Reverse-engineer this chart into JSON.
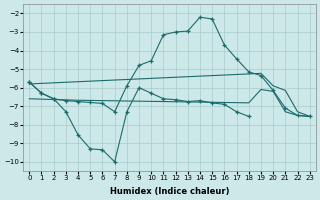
{
  "xlabel": "Humidex (Indice chaleur)",
  "bg_color": "#cde8e8",
  "grid_color": "#aacccc",
  "line_color": "#1a6b6b",
  "x_values": [
    0,
    1,
    2,
    3,
    4,
    5,
    6,
    7,
    8,
    9,
    10,
    11,
    12,
    13,
    14,
    15,
    16,
    17,
    18,
    19,
    20,
    21,
    22,
    23
  ],
  "y_curve": [
    -5.7,
    -6.3,
    -6.6,
    -6.7,
    -6.75,
    -6.8,
    -6.85,
    -7.3,
    -5.9,
    -4.8,
    -4.55,
    -3.15,
    -3.0,
    -2.95,
    -2.2,
    -2.3,
    -3.7,
    -4.45,
    -5.15,
    -5.35,
    -6.15,
    -7.1,
    -7.5,
    -7.55
  ],
  "y_upper": [
    -5.8,
    -5.77,
    -5.74,
    -5.71,
    -5.68,
    -5.65,
    -5.62,
    -5.59,
    -5.56,
    -5.53,
    -5.5,
    -5.47,
    -5.44,
    -5.41,
    -5.38,
    -5.35,
    -5.32,
    -5.29,
    -5.26,
    -5.23,
    -5.9,
    -6.15,
    -7.3,
    -7.55
  ],
  "y_lower": [
    -6.6,
    -6.62,
    -6.64,
    -6.66,
    -6.68,
    -6.69,
    -6.7,
    -6.71,
    -6.72,
    -6.73,
    -6.74,
    -6.75,
    -6.76,
    -6.77,
    -6.78,
    -6.79,
    -6.8,
    -6.81,
    -6.82,
    -6.1,
    -6.2,
    -7.3,
    -7.5,
    -7.55
  ],
  "x_zz": [
    0,
    1,
    2,
    3,
    4,
    5,
    6,
    7,
    8,
    9,
    10,
    11,
    12,
    13,
    14,
    15,
    16,
    17,
    18
  ],
  "y_zz": [
    -5.7,
    -6.3,
    -6.6,
    -7.3,
    -8.55,
    -9.3,
    -9.35,
    -10.0,
    -7.3,
    -6.0,
    -6.3,
    -6.6,
    -6.65,
    -6.75,
    -6.7,
    -6.82,
    -6.9,
    -7.3,
    -7.55
  ],
  "xlim": [
    -0.5,
    23.5
  ],
  "ylim": [
    -10.5,
    -1.5
  ],
  "yticks": [
    -10,
    -9,
    -8,
    -7,
    -6,
    -5,
    -4,
    -3,
    -2
  ],
  "xticks": [
    0,
    1,
    2,
    3,
    4,
    5,
    6,
    7,
    8,
    9,
    10,
    11,
    12,
    13,
    14,
    15,
    16,
    17,
    18,
    19,
    20,
    21,
    22,
    23
  ]
}
